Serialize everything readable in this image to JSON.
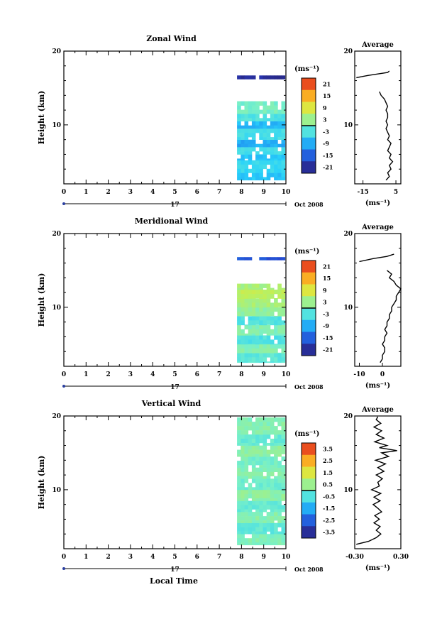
{
  "figure": {
    "date_label": "Oct 2008",
    "xlabel_bottom": "Local Time"
  },
  "chart_data": [
    {
      "type": "heatmap",
      "name": "zonal",
      "title": "Zonal Wind",
      "ylabel": "Height (km)",
      "xlim": [
        0,
        10
      ],
      "ylim": [
        2,
        20
      ],
      "x_ticks": [
        "0",
        "1",
        "2",
        "3",
        "4",
        "5",
        "6",
        "7",
        "8",
        "9",
        "10"
      ],
      "y_ticks": [
        "10",
        "20"
      ],
      "date_day": "17",
      "colorbar": {
        "unit": "(ms⁻¹)",
        "ticks": [
          "21",
          "15",
          "9",
          "3",
          "-3",
          "-9",
          "-15",
          "-21"
        ],
        "range": [
          -24,
          24
        ]
      },
      "data_extent": {
        "x": [
          7.8,
          9.9
        ],
        "y": [
          2.5,
          13.2
        ]
      },
      "bands": [
        {
          "y": [
            2.5,
            3.5
          ],
          "value": -7
        },
        {
          "y": [
            3.5,
            5.2
          ],
          "value": -5
        },
        {
          "y": [
            5.2,
            6.0
          ],
          "value": -7
        },
        {
          "y": [
            6.0,
            7.0
          ],
          "value": -4
        },
        {
          "y": [
            7.0,
            8.0
          ],
          "value": -9
        },
        {
          "y": [
            8.0,
            9.5
          ],
          "value": -4
        },
        {
          "y": [
            9.5,
            10.5
          ],
          "value": -8
        },
        {
          "y": [
            10.5,
            11.5
          ],
          "value": -3
        },
        {
          "y": [
            11.5,
            13.2
          ],
          "value": 0
        },
        {
          "y": [
            16.2,
            16.7
          ],
          "value": -21
        }
      ],
      "average": {
        "title": "Average",
        "xlim": [
          -20,
          8
        ],
        "x_ticks": [
          "-15",
          "5"
        ],
        "xlabel": "(ms⁻¹)",
        "profile": [
          [
            -1,
            2.5
          ],
          [
            1,
            3
          ],
          [
            0,
            3.5
          ],
          [
            2,
            4
          ],
          [
            1,
            4.5
          ],
          [
            3,
            5
          ],
          [
            1,
            5.5
          ],
          [
            2,
            6
          ],
          [
            0,
            6.5
          ],
          [
            1,
            7
          ],
          [
            2,
            7.5
          ],
          [
            0,
            8
          ],
          [
            1,
            8.5
          ],
          [
            0,
            9
          ],
          [
            -1,
            9.5
          ],
          [
            0,
            10
          ],
          [
            -1,
            10.5
          ],
          [
            0,
            11
          ],
          [
            0,
            11.5
          ],
          [
            -1,
            12
          ],
          [
            0,
            12.5
          ],
          [
            -1,
            13
          ],
          [
            -2,
            13.5
          ],
          [
            -4,
            14
          ],
          [
            -5,
            14.5
          ]
        ],
        "profile_upper": [
          [
            -19,
            16.4
          ],
          [
            -12,
            16.7
          ],
          [
            -6,
            16.9
          ],
          [
            0,
            17.1
          ],
          [
            1,
            17.3
          ]
        ]
      }
    },
    {
      "type": "heatmap",
      "name": "meridional",
      "title": "Meridional Wind",
      "ylabel": "Height (km)",
      "xlim": [
        0,
        10
      ],
      "ylim": [
        2,
        20
      ],
      "x_ticks": [
        "0",
        "1",
        "2",
        "3",
        "4",
        "5",
        "6",
        "7",
        "8",
        "9",
        "10"
      ],
      "y_ticks": [
        "10",
        "20"
      ],
      "date_day": "17",
      "colorbar": {
        "unit": "(ms⁻¹)",
        "ticks": [
          "21",
          "15",
          "9",
          "3",
          "-3",
          "-9",
          "-15",
          "-21"
        ],
        "range": [
          -24,
          24
        ]
      },
      "data_extent": {
        "x": [
          7.8,
          9.9
        ],
        "y": [
          2.5,
          13.2
        ]
      },
      "bands": [
        {
          "y": [
            2.5,
            3.8
          ],
          "value": -2
        },
        {
          "y": [
            3.8,
            5.0
          ],
          "value": 1
        },
        {
          "y": [
            5.0,
            6.2
          ],
          "value": -3
        },
        {
          "y": [
            6.2,
            7.6
          ],
          "value": 1
        },
        {
          "y": [
            7.6,
            8.8
          ],
          "value": -3
        },
        {
          "y": [
            8.8,
            10.0
          ],
          "value": 2
        },
        {
          "y": [
            10.0,
            11.2
          ],
          "value": 4
        },
        {
          "y": [
            11.2,
            12.4
          ],
          "value": 6
        },
        {
          "y": [
            12.4,
            13.2
          ],
          "value": 4
        },
        {
          "y": [
            16.4,
            16.8
          ],
          "value": -16
        }
      ],
      "average": {
        "title": "Average",
        "xlim": [
          -12,
          8
        ],
        "x_ticks": [
          "-10",
          "0"
        ],
        "xlabel": "(ms⁻¹)",
        "profile": [
          [
            -1,
            2.5
          ],
          [
            0,
            3
          ],
          [
            0,
            3.5
          ],
          [
            1,
            4
          ],
          [
            1,
            4.5
          ],
          [
            0,
            5
          ],
          [
            1,
            5.5
          ],
          [
            1,
            6
          ],
          [
            2,
            6.5
          ],
          [
            1,
            7
          ],
          [
            2,
            7.5
          ],
          [
            2,
            8
          ],
          [
            3,
            8.5
          ],
          [
            3,
            9
          ],
          [
            4,
            9.5
          ],
          [
            4,
            10
          ],
          [
            5,
            10.5
          ],
          [
            6,
            11
          ],
          [
            6,
            11.5
          ],
          [
            7,
            12
          ],
          [
            8,
            12.5
          ],
          [
            6,
            13
          ],
          [
            5,
            13.5
          ],
          [
            3,
            14
          ],
          [
            4,
            14.5
          ],
          [
            2,
            15
          ]
        ],
        "profile_upper": [
          [
            -10,
            16.2
          ],
          [
            -4,
            16.6
          ],
          [
            2,
            16.9
          ],
          [
            5,
            17.2
          ]
        ]
      }
    },
    {
      "type": "heatmap",
      "name": "vertical",
      "title": "Vertical Wind",
      "ylabel": "Height (km)",
      "xlim": [
        0,
        10
      ],
      "ylim": [
        2,
        20
      ],
      "x_ticks": [
        "0",
        "1",
        "2",
        "3",
        "4",
        "5",
        "6",
        "7",
        "8",
        "9",
        "10"
      ],
      "y_ticks": [
        "10",
        "20"
      ],
      "date_day": "17",
      "colorbar": {
        "unit": "(ms⁻¹)",
        "ticks": [
          "3.5",
          "2.5",
          "1.5",
          "0.5",
          "-0.5",
          "-1.5",
          "-2.5",
          "-3.5"
        ],
        "range": [
          -4,
          4
        ]
      },
      "data_extent": {
        "x": [
          7.8,
          9.9
        ],
        "y": [
          2.5,
          19.8
        ]
      },
      "bands": [
        {
          "y": [
            2.5,
            4.0
          ],
          "value": 0.1
        },
        {
          "y": [
            4.0,
            5.5
          ],
          "value": -0.3
        },
        {
          "y": [
            5.5,
            7.0
          ],
          "value": 0.2
        },
        {
          "y": [
            7.0,
            8.5
          ],
          "value": -0.2
        },
        {
          "y": [
            8.5,
            10.0
          ],
          "value": 0.3
        },
        {
          "y": [
            10.0,
            11.5
          ],
          "value": -0.1
        },
        {
          "y": [
            11.5,
            13.0
          ],
          "value": 0.2
        },
        {
          "y": [
            13.0,
            14.5
          ],
          "value": 0.0
        },
        {
          "y": [
            14.5,
            16.0
          ],
          "value": 0.3
        },
        {
          "y": [
            16.0,
            17.5
          ],
          "value": -0.2
        },
        {
          "y": [
            17.5,
            19.8
          ],
          "value": 0.2
        }
      ],
      "average": {
        "title": "Average",
        "xlim": [
          -0.3,
          0.3
        ],
        "x_ticks": [
          "-0.30",
          "0.30"
        ],
        "xlabel": "(ms⁻¹)",
        "profile": [
          [
            -0.28,
            2.6
          ],
          [
            -0.12,
            3
          ],
          [
            -0.02,
            3.5
          ],
          [
            0.04,
            4
          ],
          [
            -0.02,
            4.5
          ],
          [
            0.03,
            5
          ],
          [
            -0.05,
            5.5
          ],
          [
            0.02,
            6
          ],
          [
            -0.04,
            6.5
          ],
          [
            0.05,
            7
          ],
          [
            0.0,
            7.5
          ],
          [
            -0.06,
            8
          ],
          [
            0.03,
            8.5
          ],
          [
            -0.05,
            9
          ],
          [
            0.04,
            9.5
          ],
          [
            -0.08,
            10
          ],
          [
            0.02,
            10.5
          ],
          [
            0.0,
            11
          ],
          [
            0.06,
            11.5
          ],
          [
            -0.02,
            12
          ],
          [
            0.08,
            12.5
          ],
          [
            0.0,
            13
          ],
          [
            0.1,
            13.5
          ],
          [
            -0.03,
            14
          ],
          [
            0.14,
            14.5
          ],
          [
            0.05,
            15
          ],
          [
            0.25,
            15.3
          ],
          [
            0.02,
            15.7
          ],
          [
            0.12,
            16
          ],
          [
            -0.04,
            16.5
          ],
          [
            0.08,
            17
          ],
          [
            -0.02,
            17.5
          ],
          [
            0.05,
            18
          ],
          [
            -0.05,
            18.5
          ],
          [
            0.04,
            19
          ],
          [
            -0.02,
            19.5
          ],
          [
            0.0,
            19.9
          ]
        ]
      }
    }
  ]
}
